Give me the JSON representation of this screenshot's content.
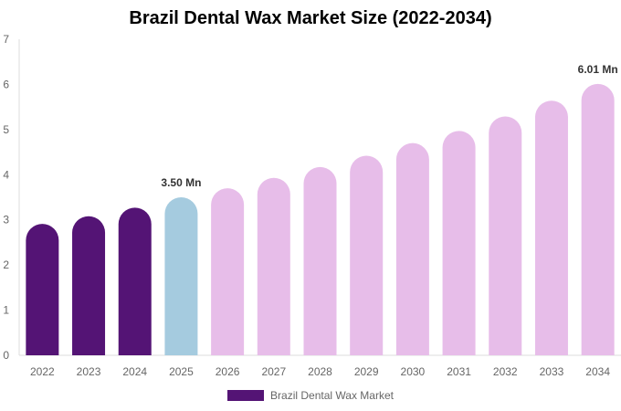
{
  "chart_data": {
    "type": "bar",
    "title": "Brazil Dental Wax Market Size (2022-2034)",
    "xlabel": "",
    "ylabel": "",
    "categories": [
      "2022",
      "2023",
      "2024",
      "2025",
      "2026",
      "2027",
      "2028",
      "2029",
      "2030",
      "2031",
      "2032",
      "2033",
      "2034"
    ],
    "series": [
      {
        "name": "Brazil Dental Wax Market",
        "values": [
          2.91,
          3.08,
          3.27,
          3.5,
          3.7,
          3.93,
          4.17,
          4.42,
          4.7,
          4.97,
          5.29,
          5.64,
          6.01
        ]
      }
    ],
    "bar_roles": [
      "historical",
      "historical",
      "historical",
      "base",
      "forecast",
      "forecast",
      "forecast",
      "forecast",
      "forecast",
      "forecast",
      "forecast",
      "forecast",
      "forecast"
    ],
    "data_labels": [
      {
        "index": 3,
        "text": "3.50 Mn"
      },
      {
        "index": 12,
        "text": "6.01 Mn"
      }
    ],
    "ylim": [
      0,
      7
    ],
    "yticks": [
      "0",
      "1",
      "2",
      "3",
      "4",
      "5",
      "6",
      "7"
    ],
    "grid": false,
    "legend_position": "bottom",
    "colors": {
      "historical": "#541475",
      "base": "#a5cbdf",
      "forecast": "#e7bde9",
      "axis_text": "#666666",
      "label_text": "#333333",
      "axis_line": "#dddddd"
    }
  }
}
